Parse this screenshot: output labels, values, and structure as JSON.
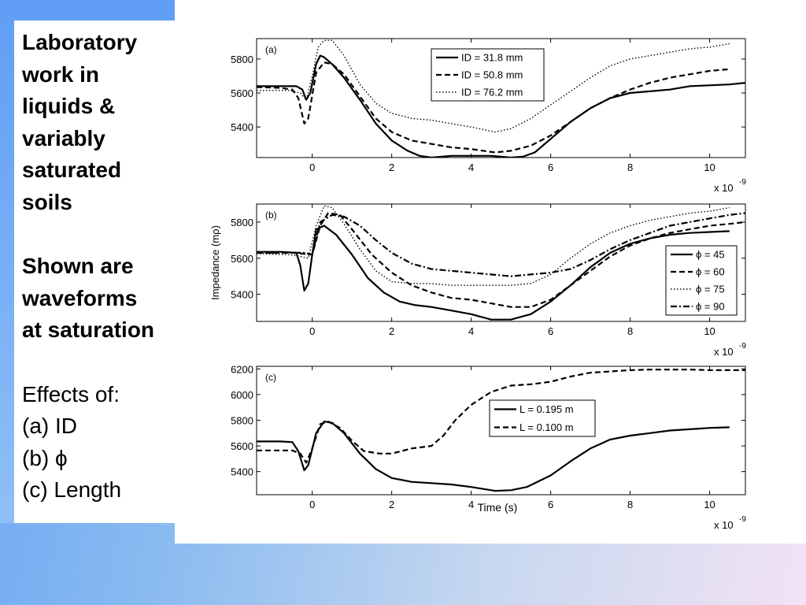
{
  "slide": {
    "heading_lines": [
      "Laboratory",
      "work in",
      "liquids &",
      "variably",
      "saturated",
      "soils"
    ],
    "note_lines": [
      "Shown are",
      "waveforms",
      "at saturation"
    ],
    "effects_lines": [
      "Effects of:",
      "(a) ID",
      "(b) ϕ",
      "(c) Length"
    ]
  },
  "chart_data": [
    {
      "type": "line",
      "panel_label": "(a)",
      "xlabel": "",
      "ylabel": "",
      "x_multiplier": "x 10",
      "x_multiplier_exp": "-9",
      "xlim": [
        -1.4,
        10.9
      ],
      "ylim": [
        5220,
        5920
      ],
      "xticks": [
        0,
        2,
        4,
        6,
        8,
        10
      ],
      "yticks": [
        5400,
        5600,
        5800
      ],
      "legend_position": "top-right",
      "series": [
        {
          "name": "ID = 31.8 mm",
          "style": "solid",
          "x": [
            -1.4,
            -0.8,
            -0.4,
            -0.25,
            -0.15,
            -0.05,
            0.1,
            0.2,
            0.3,
            0.5,
            0.8,
            1.2,
            1.6,
            2.0,
            2.4,
            2.7,
            3.0,
            3.5,
            4.0,
            4.5,
            5.0,
            5.3,
            5.6,
            6.0,
            6.5,
            7.0,
            7.5,
            8.0,
            8.5,
            9.0,
            9.5,
            10.0,
            10.5,
            10.9
          ],
          "y": [
            5640,
            5640,
            5640,
            5620,
            5560,
            5600,
            5770,
            5820,
            5810,
            5770,
            5690,
            5560,
            5420,
            5320,
            5260,
            5230,
            5220,
            5230,
            5230,
            5230,
            5220,
            5225,
            5250,
            5330,
            5430,
            5510,
            5570,
            5600,
            5610,
            5620,
            5640,
            5645,
            5650,
            5660
          ]
        },
        {
          "name": "ID = 50.8 mm",
          "style": "dashed",
          "x": [
            -1.4,
            -0.8,
            -0.5,
            -0.35,
            -0.2,
            -0.1,
            0.1,
            0.3,
            0.5,
            0.8,
            1.2,
            1.6,
            2.0,
            2.5,
            3.0,
            3.5,
            4.0,
            4.6,
            5.0,
            5.5,
            6.0,
            6.5,
            7.0,
            7.5,
            8.0,
            8.5,
            9.0,
            9.5,
            10.0,
            10.5
          ],
          "y": [
            5635,
            5630,
            5620,
            5570,
            5420,
            5450,
            5720,
            5780,
            5770,
            5710,
            5580,
            5450,
            5370,
            5320,
            5300,
            5280,
            5270,
            5250,
            5260,
            5290,
            5350,
            5430,
            5510,
            5570,
            5620,
            5660,
            5690,
            5710,
            5730,
            5740
          ]
        },
        {
          "name": "ID = 76.2 mm",
          "style": "dotted",
          "x": [
            -1.4,
            -0.6,
            -0.3,
            -0.15,
            0.0,
            0.15,
            0.3,
            0.5,
            0.8,
            1.2,
            1.6,
            2.0,
            2.5,
            3.0,
            3.5,
            4.0,
            4.6,
            5.0,
            5.5,
            6.0,
            6.5,
            7.0,
            7.5,
            8.0,
            8.5,
            9.0,
            9.5,
            10.0,
            10.5
          ],
          "y": [
            5615,
            5615,
            5600,
            5560,
            5700,
            5870,
            5910,
            5910,
            5820,
            5650,
            5540,
            5480,
            5450,
            5440,
            5420,
            5400,
            5370,
            5390,
            5450,
            5530,
            5610,
            5690,
            5760,
            5800,
            5820,
            5840,
            5860,
            5870,
            5890
          ]
        }
      ]
    },
    {
      "type": "line",
      "panel_label": "(b)",
      "xlabel": "",
      "ylabel": "Impedance (mρ)",
      "x_multiplier": "x 10",
      "x_multiplier_exp": "-9",
      "xlim": [
        -1.4,
        10.9
      ],
      "ylim": [
        5250,
        5900
      ],
      "xticks": [
        0,
        2,
        4,
        6,
        8,
        10
      ],
      "yticks": [
        5400,
        5600,
        5800
      ],
      "legend_position": "bottom-right",
      "series": [
        {
          "name": "ϕ = 45",
          "style": "solid",
          "x": [
            -1.4,
            -0.8,
            -0.4,
            -0.3,
            -0.2,
            -0.1,
            0.0,
            0.1,
            0.3,
            0.6,
            1.0,
            1.4,
            1.8,
            2.2,
            2.6,
            3.0,
            3.5,
            4.0,
            4.5,
            5.0,
            5.5,
            6.0,
            6.5,
            7.0,
            7.5,
            8.0,
            8.5,
            9.0,
            9.5,
            10.0,
            10.5
          ],
          "y": [
            5635,
            5635,
            5630,
            5560,
            5420,
            5460,
            5620,
            5760,
            5780,
            5730,
            5620,
            5490,
            5410,
            5360,
            5340,
            5330,
            5310,
            5290,
            5260,
            5260,
            5290,
            5360,
            5450,
            5550,
            5630,
            5680,
            5710,
            5730,
            5740,
            5745,
            5750
          ]
        },
        {
          "name": "ϕ = 60",
          "style": "dashed",
          "x": [
            -1.4,
            -0.5,
            0.0,
            0.2,
            0.4,
            0.7,
            1.0,
            1.5,
            2.0,
            2.5,
            3.0,
            3.5,
            4.0,
            4.5,
            5.0,
            5.5,
            6.0,
            6.5,
            7.0,
            7.5,
            8.0,
            8.5,
            9.0,
            9.5,
            10.0,
            10.5,
            10.9
          ],
          "y": [
            5630,
            5630,
            5620,
            5780,
            5850,
            5840,
            5760,
            5620,
            5520,
            5450,
            5410,
            5380,
            5370,
            5350,
            5330,
            5330,
            5370,
            5450,
            5530,
            5610,
            5670,
            5710,
            5740,
            5760,
            5780,
            5790,
            5800
          ]
        },
        {
          "name": "ϕ = 75",
          "style": "dotted",
          "x": [
            -1.4,
            -0.6,
            -0.3,
            -0.1,
            0.1,
            0.3,
            0.5,
            0.8,
            1.2,
            1.6,
            2.0,
            2.5,
            3.0,
            3.5,
            4.0,
            4.5,
            5.0,
            5.5,
            6.0,
            6.5,
            7.0,
            7.5,
            8.0,
            8.5,
            9.0,
            9.5,
            10.0,
            10.5
          ],
          "y": [
            5625,
            5620,
            5610,
            5600,
            5780,
            5890,
            5880,
            5790,
            5650,
            5530,
            5470,
            5460,
            5460,
            5450,
            5450,
            5450,
            5450,
            5460,
            5510,
            5600,
            5680,
            5740,
            5780,
            5810,
            5830,
            5850,
            5860,
            5880
          ]
        },
        {
          "name": "ϕ = 90",
          "style": "dashdot",
          "x": [
            -1.4,
            -0.6,
            -0.2,
            0.0,
            0.2,
            0.5,
            0.8,
            1.2,
            1.6,
            2.0,
            2.5,
            3.0,
            3.5,
            4.0,
            4.5,
            5.0,
            5.5,
            6.0,
            6.5,
            7.0,
            7.5,
            8.0,
            8.5,
            9.0,
            9.5,
            10.0,
            10.5,
            10.9
          ],
          "y": [
            5630,
            5630,
            5630,
            5620,
            5800,
            5840,
            5830,
            5780,
            5700,
            5630,
            5570,
            5540,
            5530,
            5520,
            5510,
            5500,
            5510,
            5520,
            5540,
            5590,
            5650,
            5700,
            5740,
            5780,
            5800,
            5820,
            5840,
            5850
          ]
        }
      ]
    },
    {
      "type": "line",
      "panel_label": "(c)",
      "xlabel": "Time (s)",
      "ylabel": "",
      "x_multiplier": "x 10",
      "x_multiplier_exp": "-9",
      "xlim": [
        -1.4,
        10.9
      ],
      "ylim": [
        5220,
        6220
      ],
      "xticks": [
        0,
        2,
        4,
        6,
        8,
        10
      ],
      "yticks": [
        5400,
        5600,
        5800,
        6000,
        6200
      ],
      "legend_position": "center-right",
      "series": [
        {
          "name": "L = 0.195 m",
          "style": "solid",
          "x": [
            -1.4,
            -0.8,
            -0.5,
            -0.35,
            -0.2,
            -0.1,
            0.1,
            0.3,
            0.5,
            0.8,
            1.2,
            1.6,
            2.0,
            2.5,
            3.0,
            3.5,
            4.0,
            4.6,
            5.0,
            5.4,
            6.0,
            6.5,
            7.0,
            7.5,
            8.0,
            8.5,
            9.0,
            9.5,
            10.0,
            10.5
          ],
          "y": [
            5635,
            5635,
            5630,
            5560,
            5410,
            5450,
            5700,
            5790,
            5780,
            5700,
            5540,
            5420,
            5350,
            5320,
            5310,
            5300,
            5280,
            5250,
            5255,
            5280,
            5370,
            5480,
            5580,
            5650,
            5680,
            5700,
            5720,
            5730,
            5740,
            5745
          ]
        },
        {
          "name": "L = 0.100 m",
          "style": "dashed",
          "x": [
            -1.4,
            -0.8,
            -0.5,
            -0.3,
            -0.15,
            0.0,
            0.2,
            0.4,
            0.7,
            1.0,
            1.3,
            1.7,
            2.0,
            2.5,
            3.0,
            3.3,
            3.6,
            4.0,
            4.5,
            5.0,
            5.5,
            6.0,
            6.5,
            7.0,
            7.5,
            8.0,
            8.5,
            9.0,
            9.5,
            10.0,
            10.5,
            10.9
          ],
          "y": [
            5565,
            5565,
            5565,
            5540,
            5470,
            5580,
            5770,
            5790,
            5740,
            5640,
            5560,
            5540,
            5540,
            5580,
            5600,
            5680,
            5800,
            5920,
            6020,
            6070,
            6080,
            6100,
            6140,
            6170,
            6180,
            6190,
            6195,
            6195,
            6195,
            6190,
            6190,
            6190
          ]
        }
      ]
    }
  ]
}
